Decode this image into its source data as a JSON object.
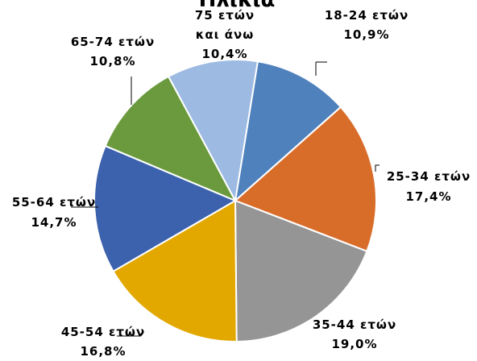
{
  "chart_data": {
    "type": "pie",
    "title": "Ηλικία",
    "slices": [
      {
        "label": "18-24 ετών",
        "value": 10.9,
        "value_label": "10,9%",
        "color": "#4f81bd"
      },
      {
        "label": "25-34 ετών",
        "value": 17.4,
        "value_label": "17,4%",
        "color": "#d86d2a"
      },
      {
        "label": "35-44 ετών",
        "value": 19.0,
        "value_label": "19,0%",
        "color": "#959595"
      },
      {
        "label": "45-54 ετών",
        "value": 16.8,
        "value_label": "16,8%",
        "color": "#e2a800"
      },
      {
        "label": "55-64 ετών",
        "value": 14.7,
        "value_label": "14,7%",
        "color": "#3c62ad"
      },
      {
        "label": "65-74 ετών",
        "value": 10.8,
        "value_label": "10,8%",
        "color": "#6a9a3d"
      },
      {
        "label_lines": [
          "75 ετών",
          "και άνω"
        ],
        "value": 10.4,
        "value_label": "10,4%",
        "color": "#9cbae2"
      }
    ]
  }
}
